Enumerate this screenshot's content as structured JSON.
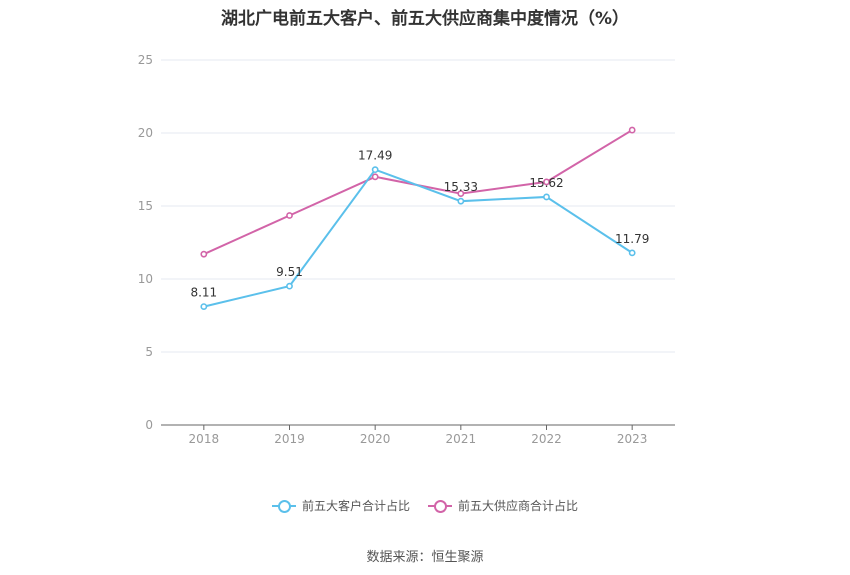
{
  "title": "湖北广电前五大客户、前五大供应商集中度情况（%）",
  "source": "数据来源：恒生聚源",
  "chart_data": {
    "type": "line",
    "x": [
      "2018",
      "2019",
      "2020",
      "2021",
      "2022",
      "2023"
    ],
    "ylim": [
      0,
      25
    ],
    "yticks": [
      0,
      5,
      10,
      15,
      20,
      25
    ],
    "grid": true,
    "legend_position": "bottom",
    "series": [
      {
        "name": "前五大客户合计占比",
        "color": "#5bc0eb",
        "values": [
          8.11,
          9.51,
          17.49,
          15.33,
          15.62,
          11.79
        ],
        "labels": [
          "8.11",
          "9.51",
          "17.49",
          "15.33",
          "15.62",
          "11.79"
        ]
      },
      {
        "name": "前五大供应商合计占比",
        "color": "#d264a8",
        "values": [
          11.7,
          14.35,
          17.0,
          15.85,
          16.65,
          20.2
        ]
      }
    ]
  }
}
